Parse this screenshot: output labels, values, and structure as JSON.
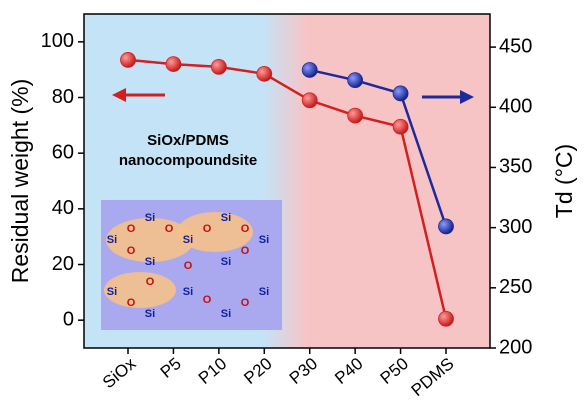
{
  "chart_data": {
    "type": "line",
    "categories": [
      "SiOx",
      "P5",
      "P10",
      "P20",
      "P30",
      "P40",
      "P50",
      "PDMS"
    ],
    "series": [
      {
        "name": "Residual weight",
        "color": "#d41f1f",
        "axis": "y",
        "values": [
          93.5,
          92,
          91,
          88.5,
          79,
          73.5,
          69.5,
          0.5
        ]
      },
      {
        "name": "Td",
        "color": "#1e2a9a",
        "axis": "y2",
        "values": [
          null,
          null,
          null,
          null,
          431,
          422.5,
          411.5,
          301
        ]
      }
    ],
    "ylabel": "Residual weight (%)",
    "y2label": "Td (°C)",
    "ylim": [
      -10,
      110
    ],
    "yticks": [
      0,
      20,
      40,
      60,
      80,
      100
    ],
    "y2lim": [
      200,
      477.5
    ],
    "y2ticks": [
      200,
      250,
      300,
      350,
      400,
      450
    ],
    "annotations": [
      "SiOx/PDMS",
      "nanocompoundsite"
    ],
    "inset_labels": [
      "Si",
      "O"
    ]
  }
}
